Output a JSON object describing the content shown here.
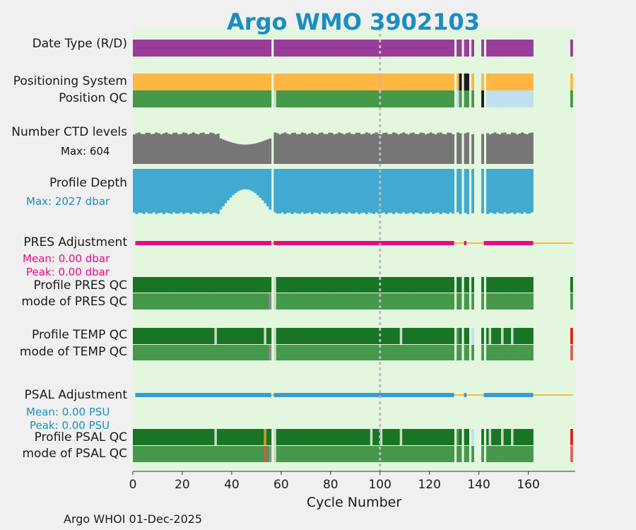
{
  "title": "Argo WMO 3902103",
  "footer": "Argo WHOI 01-Dec-2025",
  "colors": {
    "bg": "#e3f7df",
    "title": "#1a8ebf",
    "purple": "#993d9a",
    "orange": "#ffb643",
    "darkgreen": "#187525",
    "green": "#46984a",
    "lightblue": "#c0e0ef",
    "gray": "#767676",
    "cyan": "#42a9d0",
    "magenta": "#e60a84",
    "blue": "#3a9bd1",
    "pale": "#c7dcbf",
    "red": "#dd2222",
    "black": "#1b1b1b"
  },
  "labels": {
    "date_type": "Date Type (R/D)",
    "positioning_system": "Positioning System",
    "position_qc": "Position QC",
    "ctd_levels": "Number CTD levels",
    "ctd_max": "Max: 604",
    "profile_depth": "Profile Depth",
    "depth_max": "Max: 2027 dbar",
    "pres_adj": "PRES Adjustment",
    "pres_mean": "Mean: 0.00 dbar",
    "pres_peak": "Peak: 0.00 dbar",
    "profile_pres_qc": "Profile PRES QC",
    "mode_pres_qc": "mode of PRES QC",
    "profile_temp_qc": "Profile TEMP QC",
    "mode_temp_qc": "mode of TEMP QC",
    "psal_adj": "PSAL Adjustment",
    "psal_mean": "Mean: 0.00 PSU",
    "psal_peak": "Peak: 0.00 PSU",
    "profile_psal_qc": "Profile PSAL QC",
    "mode_psal_qc": "mode of PSAL QC"
  },
  "chart_data": {
    "type": "bar",
    "title": "Argo WMO 3902103",
    "xlabel": "Cycle Number",
    "xlim": [
      0,
      179
    ],
    "xticks": [
      0,
      20,
      40,
      60,
      80,
      100,
      120,
      140,
      160
    ],
    "reference_line_x": 100,
    "last_cycle": 162,
    "missing_cycles": [
      57,
      131,
      134,
      137,
      139,
      140,
      141,
      143
    ],
    "extra_cycles": [
      178
    ],
    "ctd_levels_max": 604,
    "profile_depth_max_dbar": 2027,
    "pres_adjustment": {
      "mean_dbar": 0.0,
      "peak_dbar": 0.0
    },
    "psal_adjustment": {
      "mean_psu": 0.0,
      "peak_psu": 0.0
    }
  }
}
